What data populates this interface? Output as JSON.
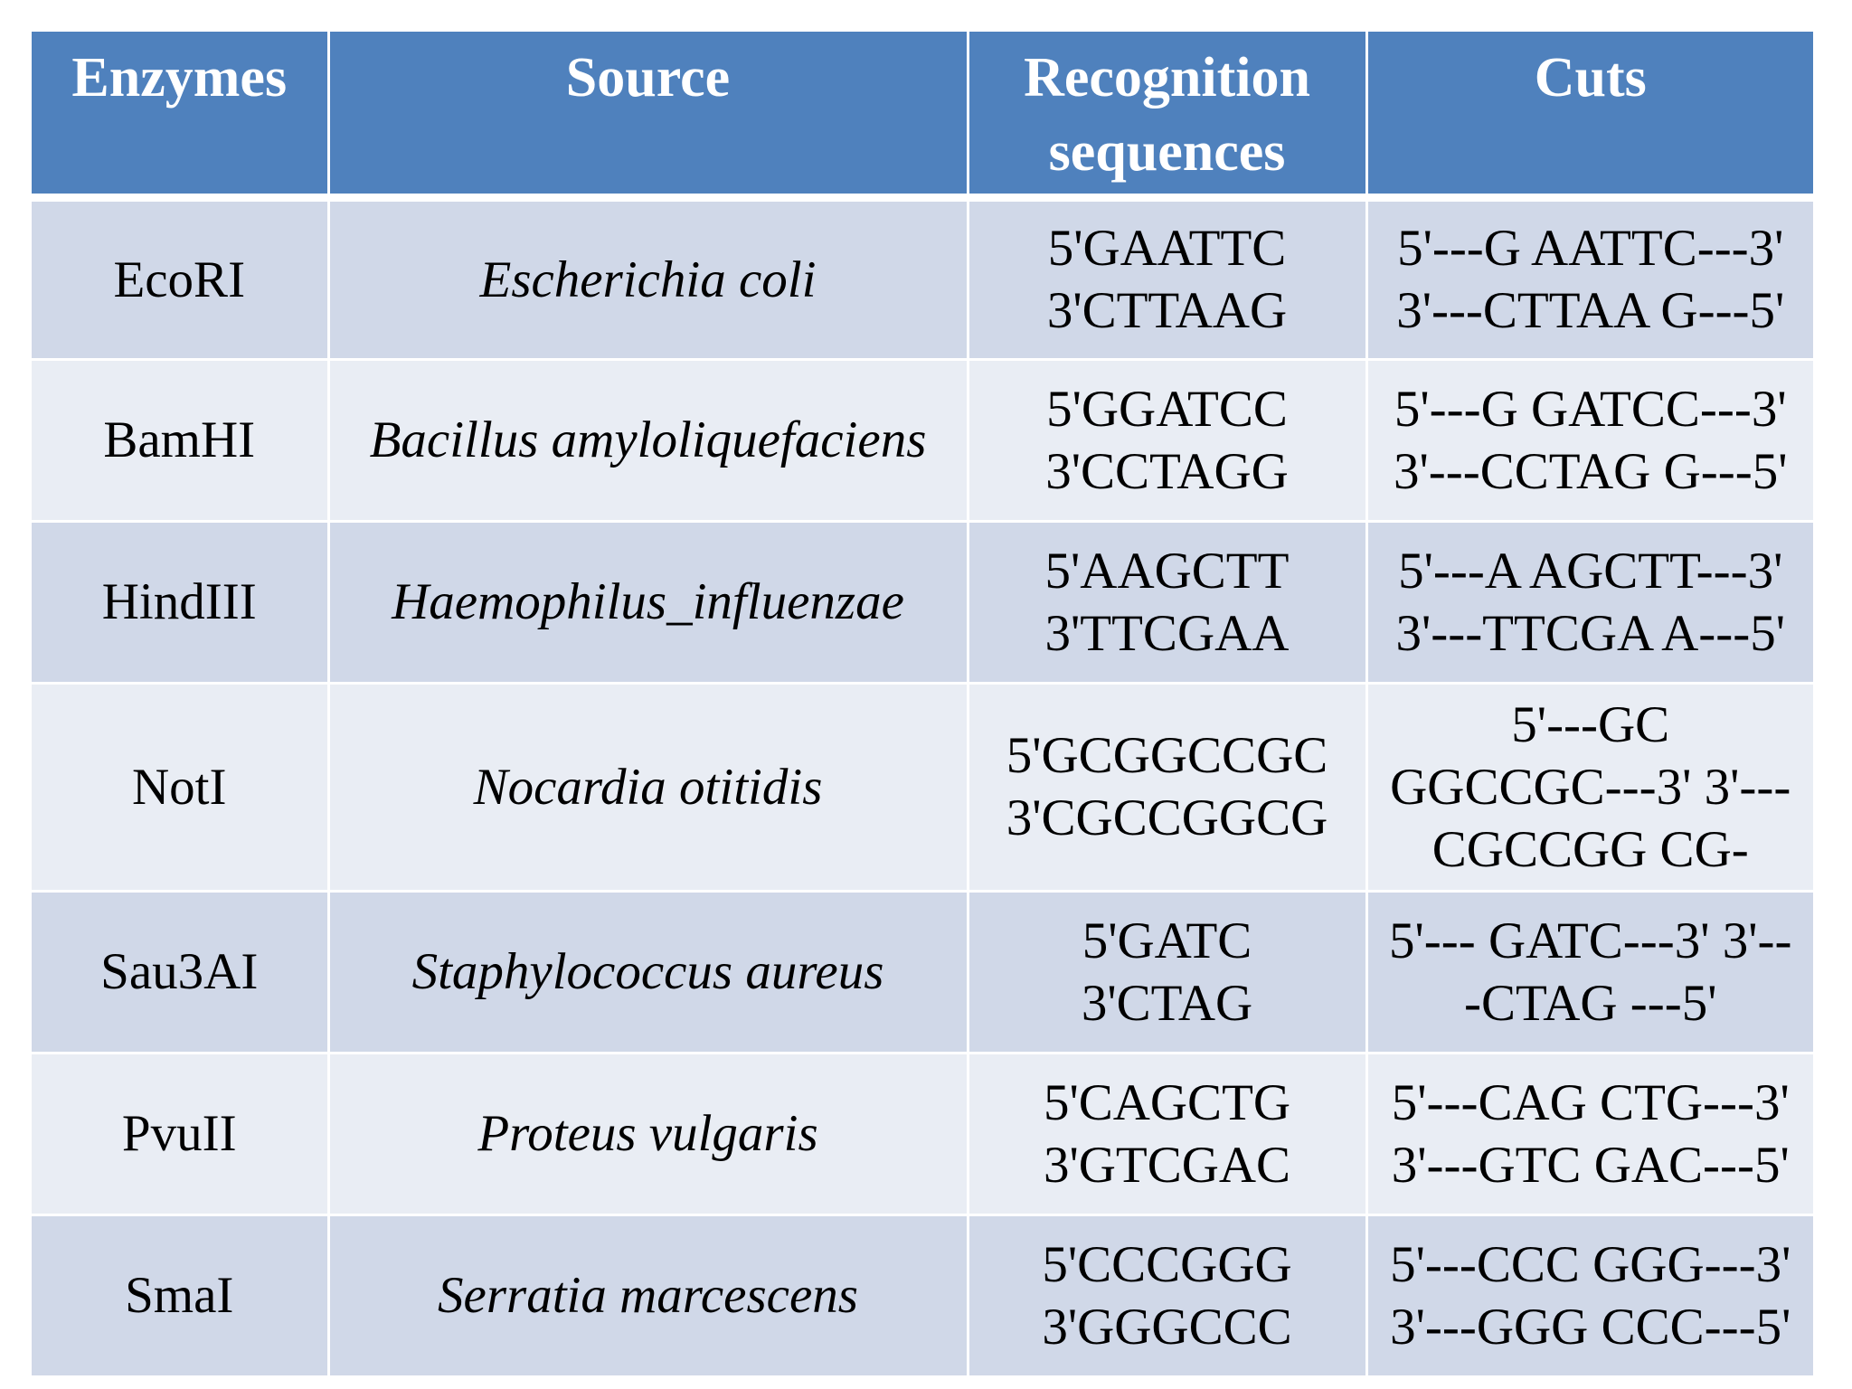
{
  "table": {
    "headers": {
      "enzymes": "Enzymes",
      "source": "Source",
      "recognition_line1": "Recognition",
      "recognition_line2": "sequences",
      "cuts": "Cuts"
    },
    "rows": [
      {
        "enzyme": "EcoRI",
        "source": "Escherichia coli",
        "recognition": [
          "5'GAATTC",
          "3'CTTAAG"
        ],
        "cuts": [
          "5'---G AATTC---3'",
          "3'---CTTAA G---5'"
        ]
      },
      {
        "enzyme": "BamHI",
        "source": "Bacillus amyloliquefaciens",
        "recognition": [
          "5'GGATCC",
          "3'CCTAGG"
        ],
        "cuts": [
          "5'---G GATCC---3'",
          "3'---CCTAG G---5'"
        ]
      },
      {
        "enzyme": "HindIII",
        "source": "Haemophilus_influenzae",
        "recognition": [
          "5'AAGCTT",
          "3'TTCGAA"
        ],
        "cuts": [
          "5'---A AGCTT---3'",
          "3'---TTCGA A---5'"
        ]
      },
      {
        "enzyme": "NotI",
        "source": "Nocardia otitidis",
        "recognition": [
          "5'GCGGCCGC",
          "3'CGCCGGCG"
        ],
        "cuts": [
          "5'---GC",
          "GGCCGC---3' 3'---",
          "CGCCGG CG-"
        ]
      },
      {
        "enzyme": "Sau3AI",
        "source": "Staphylococcus aureus",
        "recognition": [
          "5'GATC",
          "3'CTAG"
        ],
        "cuts": [
          "5'--- GATC---3' 3'--",
          "-CTAG ---5'"
        ]
      },
      {
        "enzyme": "PvuII",
        "source": "Proteus vulgaris",
        "recognition": [
          "5'CAGCTG",
          "3'GTCGAC"
        ],
        "cuts": [
          "5'---CAG CTG---3'",
          "3'---GTC GAC---5'"
        ]
      },
      {
        "enzyme": "SmaI",
        "source": "Serratia marcescens",
        "recognition": [
          "5'CCCGGG",
          "3'GGGCCC"
        ],
        "cuts": [
          "5'---CCC GGG---3'",
          "3'---GGG CCC---5'"
        ]
      }
    ]
  },
  "colors": {
    "header_bg": "#4f81bd",
    "row_dark": "#d0d8e8",
    "row_light": "#e9edf4",
    "header_text": "#ffffff",
    "body_text": "#000000"
  }
}
